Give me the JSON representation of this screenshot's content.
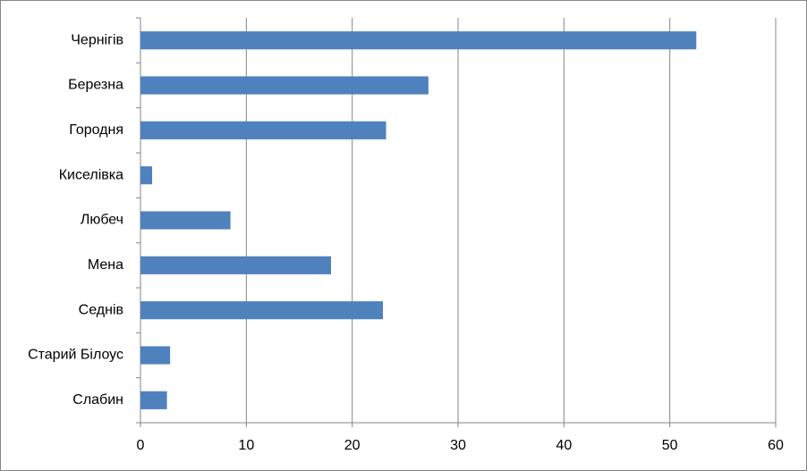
{
  "chart_data": {
    "type": "bar",
    "orientation": "horizontal",
    "categories": [
      "Чернігів",
      "Березна",
      "Городня",
      "Киселівка",
      "Любеч",
      "Мена",
      "Седнів",
      "Старий Білоус",
      "Слабин"
    ],
    "values": [
      52.5,
      27.2,
      23.2,
      1.1,
      8.5,
      18.0,
      22.9,
      2.8,
      2.5
    ],
    "color": "#4f81bd",
    "xlim": [
      0,
      60
    ],
    "xticks": [
      0,
      10,
      20,
      30,
      40,
      50,
      60
    ],
    "grid": true
  }
}
